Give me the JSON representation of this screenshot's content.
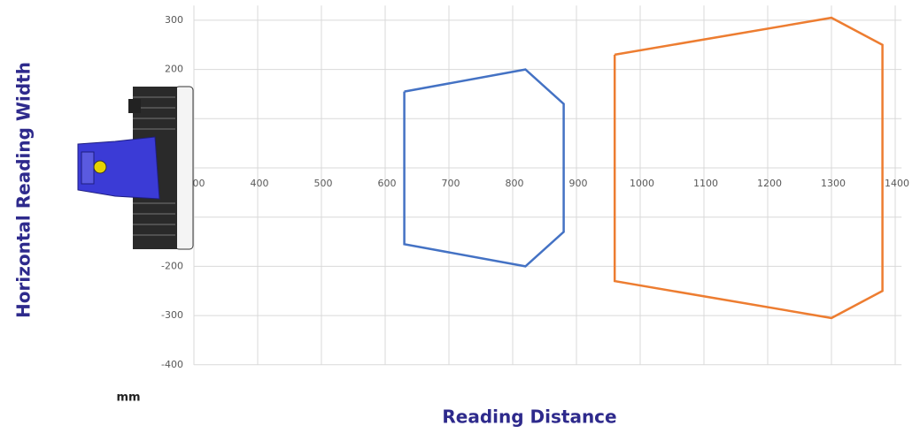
{
  "chart_data": {
    "type": "line",
    "y_label": "Horizontal Reading Width",
    "x_label": "Reading Distance",
    "unit": "mm",
    "xlim": [
      300,
      1410
    ],
    "ylim": [
      -400,
      330
    ],
    "xticks": [
      300,
      400,
      500,
      600,
      700,
      800,
      900,
      1000,
      1100,
      1200,
      1300,
      1400
    ],
    "yticks": [
      -400,
      -300,
      -200,
      -100,
      0,
      100,
      200,
      300
    ],
    "grid": true,
    "series": [
      {
        "color": "#4472c4",
        "x": [
          630,
          820,
          880,
          880,
          820,
          630,
          630
        ],
        "values": [
          155,
          200,
          130,
          -130,
          -200,
          -155,
          155
        ]
      },
      {
        "color": "#ed7d31",
        "x": [
          960,
          1300,
          1380,
          1380,
          1300,
          960,
          960
        ],
        "values": [
          230,
          305,
          250,
          -250,
          -305,
          -230,
          230
        ]
      }
    ]
  }
}
